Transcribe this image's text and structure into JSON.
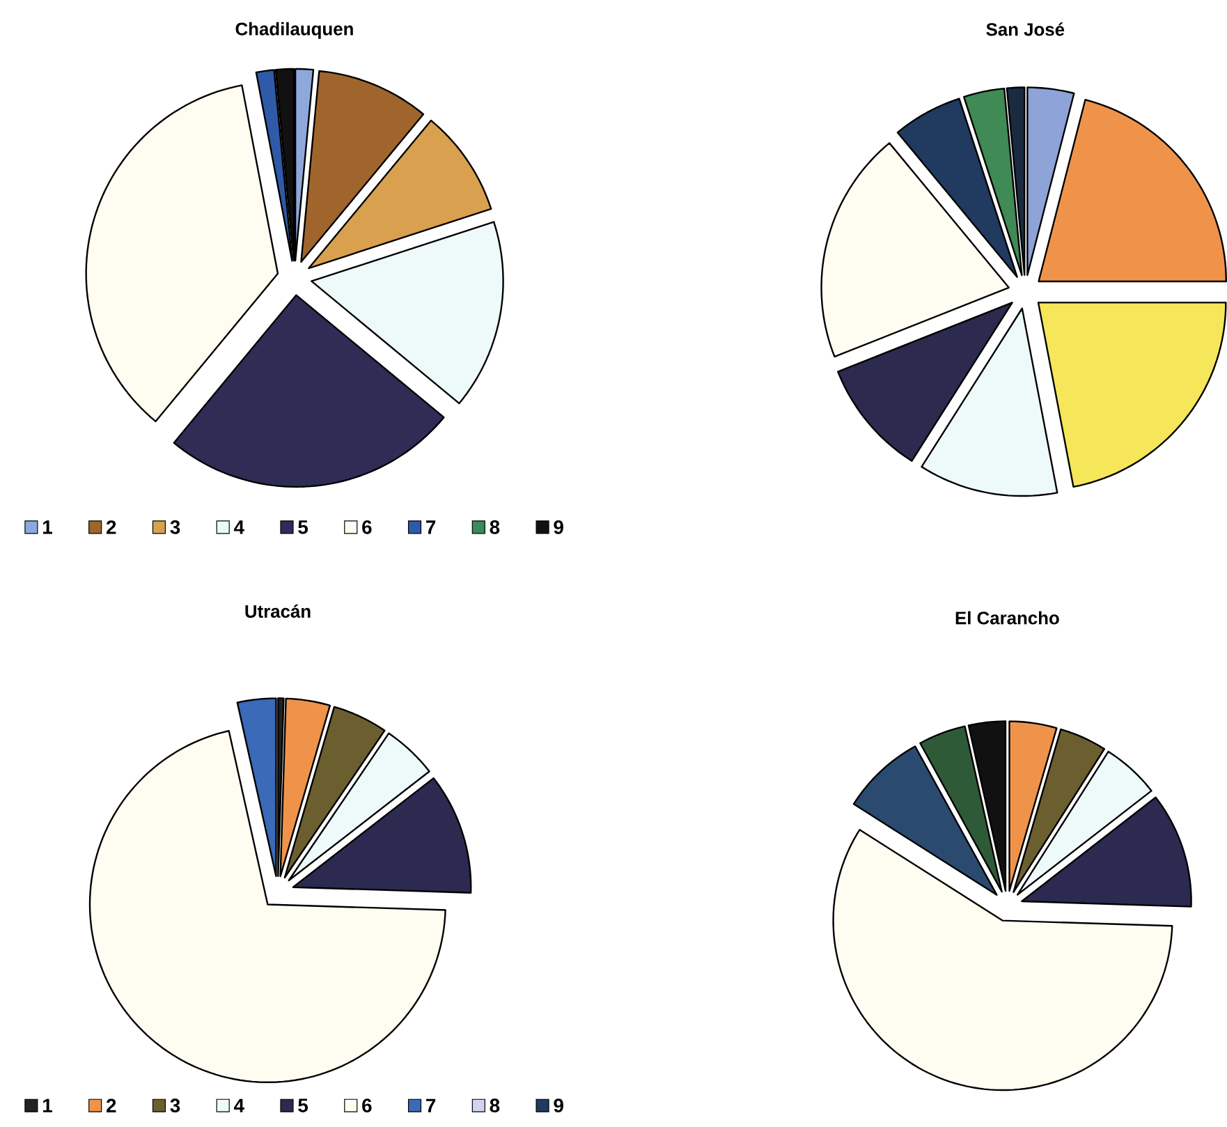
{
  "chart_data": [
    {
      "type": "pie",
      "title": "Chadilauquen",
      "categories": [
        "1",
        "2",
        "3",
        "4",
        "5",
        "6",
        "7",
        "8",
        "9"
      ],
      "values": [
        1.5,
        9.5,
        9,
        16,
        25,
        36,
        1.5,
        0,
        1.5
      ],
      "colors": [
        "#8fa8dc",
        "#a0652c",
        "#d9a050",
        "#eefafa",
        "#2f2d55",
        "#fffdf2",
        "#2e5aa8",
        "#3a8a5a",
        "#111111"
      ],
      "legend": "bottom"
    },
    {
      "type": "pie",
      "title": "San José",
      "categories": [
        null,
        null,
        null,
        null,
        null,
        null,
        null,
        null,
        null
      ],
      "values": [
        4,
        21,
        22,
        12,
        10,
        20,
        6,
        3.5,
        1.5
      ],
      "colors": [
        "#8ea4d8",
        "#f0934a",
        "#f5e65a",
        "#eefafa",
        "#2c2a4e",
        "#fffdf2",
        "#203a60",
        "#3f8a55",
        "#1a2a40"
      ]
    },
    {
      "type": "pie",
      "title": "Utracán",
      "categories": [
        "1",
        "2",
        "3",
        "4",
        "5",
        "6",
        "7",
        "8",
        "9"
      ],
      "values": [
        0.5,
        4,
        5,
        5,
        11,
        71,
        3.5,
        0,
        0
      ],
      "colors": [
        "#222222",
        "#f0934a",
        "#6b5f30",
        "#eefafa",
        "#2c2a50",
        "#fffdf2",
        "#3a6ab8",
        "#d0d4ee",
        "#203a60"
      ],
      "legend": "bottom"
    },
    {
      "type": "pie",
      "title": "El Carancho",
      "categories": [
        null,
        null,
        null,
        null,
        null,
        null,
        null,
        null,
        null
      ],
      "values": [
        0,
        4.5,
        4.5,
        5.5,
        11,
        58.5,
        8,
        4.5,
        3.5
      ],
      "colors": [
        "#888888",
        "#f0934a",
        "#6b5f30",
        "#eefafa",
        "#2c2a50",
        "#fffdf2",
        "#2a4a70",
        "#2f5a38",
        "#111111"
      ]
    }
  ]
}
